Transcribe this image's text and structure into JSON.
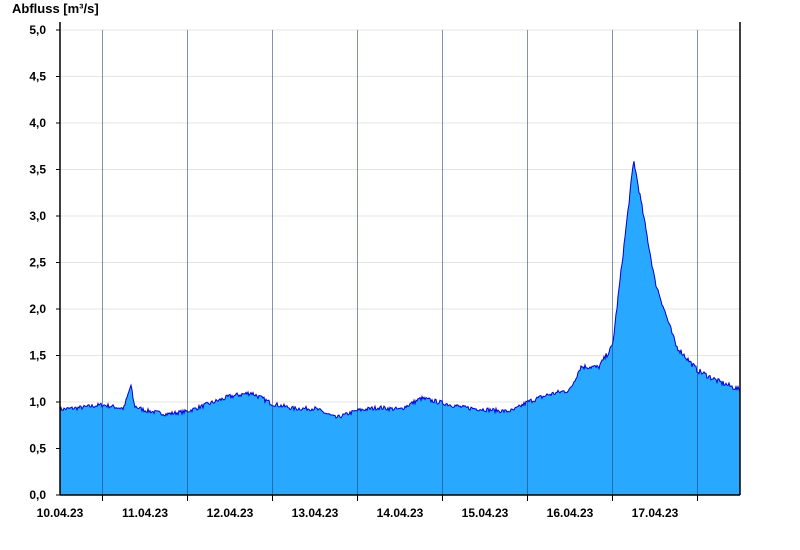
{
  "chart_data": {
    "type": "area",
    "title": "",
    "xlabel": "",
    "ylabel": "Abfluss [m³/s]",
    "ylim": [
      0,
      5
    ],
    "xlim": [
      "2023-04-09T12:00",
      "2023-04-17T12:00"
    ],
    "grid": true,
    "y_ticks": [
      "0,0",
      "0,5",
      "1,0",
      "1,5",
      "2,0",
      "2,5",
      "3,0",
      "3,5",
      "4,0",
      "4,5",
      "5,0"
    ],
    "x_ticks": [
      "10.04.23",
      "11.04.23",
      "12.04.23",
      "13.04.23",
      "14.04.23",
      "15.04.23",
      "16.04.23",
      "17.04.23"
    ],
    "fill_color": "#29a8ff",
    "line_color": "#0000cc",
    "series": [
      {
        "name": "",
        "x": [
          "2023-04-09T12:00",
          "2023-04-09T18:00",
          "2023-04-10T00:00",
          "2023-04-10T06:00",
          "2023-04-10T08:00",
          "2023-04-10T09:00",
          "2023-04-10T10:00",
          "2023-04-10T12:00",
          "2023-04-10T18:00",
          "2023-04-11T00:00",
          "2023-04-11T06:00",
          "2023-04-11T12:00",
          "2023-04-11T18:00",
          "2023-04-12T00:00",
          "2023-04-12T06:00",
          "2023-04-12T12:00",
          "2023-04-12T18:00",
          "2023-04-13T00:00",
          "2023-04-13T06:00",
          "2023-04-13T12:00",
          "2023-04-13T18:00",
          "2023-04-14T00:00",
          "2023-04-14T06:00",
          "2023-04-14T12:00",
          "2023-04-14T18:00",
          "2023-04-14T20:00",
          "2023-04-15T00:00",
          "2023-04-15T06:00",
          "2023-04-15T12:00",
          "2023-04-15T15:00",
          "2023-04-15T18:00",
          "2023-04-15T20:00",
          "2023-04-16T00:00",
          "2023-04-16T06:00",
          "2023-04-16T12:00",
          "2023-04-16T18:00",
          "2023-04-17T00:00",
          "2023-04-17T06:00",
          "2023-04-17T12:00"
        ],
        "y": [
          0.92,
          0.94,
          0.97,
          0.93,
          1.18,
          0.96,
          0.94,
          0.91,
          0.87,
          0.9,
          0.98,
          1.06,
          1.1,
          0.98,
          0.93,
          0.93,
          0.83,
          0.91,
          0.94,
          0.92,
          1.04,
          0.99,
          0.94,
          0.92,
          0.9,
          0.91,
          1.0,
          1.08,
          1.13,
          1.38,
          1.38,
          1.37,
          1.6,
          3.6,
          2.3,
          1.6,
          1.34,
          1.22,
          1.13
        ]
      }
    ]
  }
}
